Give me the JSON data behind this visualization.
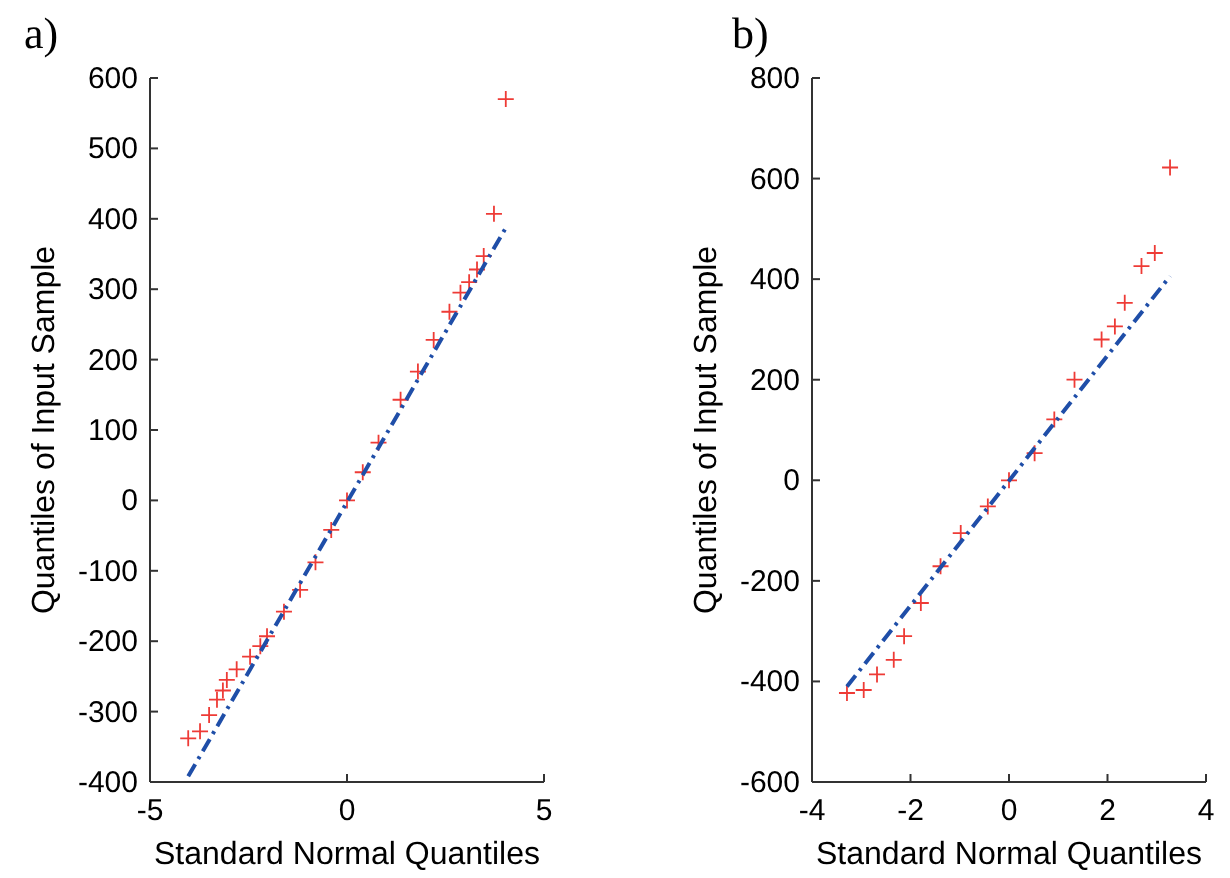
{
  "chart_data": [
    {
      "type": "scatter",
      "title": "a)",
      "xlabel": "Standard Normal Quantiles",
      "ylabel": "Quantiles of Input Sample",
      "xlim": [
        -5,
        5
      ],
      "ylim": [
        -400,
        600
      ],
      "xticks": [
        -5,
        0,
        5
      ],
      "yticks": [
        -400,
        -300,
        -200,
        -100,
        0,
        100,
        200,
        300,
        400,
        500,
        600
      ],
      "grid": false,
      "series": [
        {
          "marker": "cross",
          "color": "#ee3b36",
          "x": [
            -4.03,
            -3.73,
            -3.5,
            -3.3,
            -3.15,
            -3.05,
            -2.8,
            -2.46,
            -2.2,
            -2.03,
            -1.6,
            -1.19,
            -0.8,
            -0.4,
            0,
            0.4,
            0.8,
            1.36,
            1.8,
            2.2,
            2.6,
            2.88,
            3.1,
            3.3,
            3.47,
            3.73,
            4.03
          ],
          "values": [
            -338,
            -328,
            -305,
            -283,
            -270,
            -255,
            -240,
            -222,
            -207,
            -193,
            -158,
            -127,
            -88,
            -42,
            0,
            40,
            82,
            143,
            183,
            228,
            268,
            295,
            310,
            328,
            347,
            407,
            570
          ]
        },
        {
          "type": "line",
          "marker": "none",
          "line_style": "dashed",
          "color": "#1f4ea8",
          "x": [
            -4.03,
            4.07
          ],
          "values": [
            -392,
            391
          ]
        }
      ]
    },
    {
      "type": "scatter",
      "title": "b)",
      "xlabel": "Standard Normal Quantiles",
      "ylabel": "Quantiles of Input Sample",
      "xlim": [
        -4,
        4
      ],
      "ylim": [
        -600,
        800
      ],
      "xticks": [
        -4,
        -2,
        0,
        2,
        4
      ],
      "yticks": [
        -600,
        -400,
        -200,
        0,
        200,
        400,
        600,
        800
      ],
      "grid": false,
      "series": [
        {
          "marker": "cross",
          "color": "#ee3b36",
          "x": [
            -3.29,
            -2.95,
            -2.68,
            -2.34,
            -2.13,
            -1.79,
            -1.39,
            -0.98,
            -0.43,
            0,
            0.52,
            0.92,
            1.33,
            1.88,
            2.15,
            2.35,
            2.69,
            2.96,
            3.27
          ],
          "values": [
            -423,
            -417,
            -386,
            -357,
            -310,
            -244,
            -171,
            -105,
            -52,
            0,
            54,
            121,
            200,
            280,
            306,
            353,
            426,
            452,
            622
          ]
        },
        {
          "type": "line",
          "marker": "none",
          "line_style": "dashed",
          "color": "#1f4ea8",
          "x": [
            -3.29,
            3.27
          ],
          "values": [
            -410,
            406
          ]
        }
      ]
    }
  ]
}
